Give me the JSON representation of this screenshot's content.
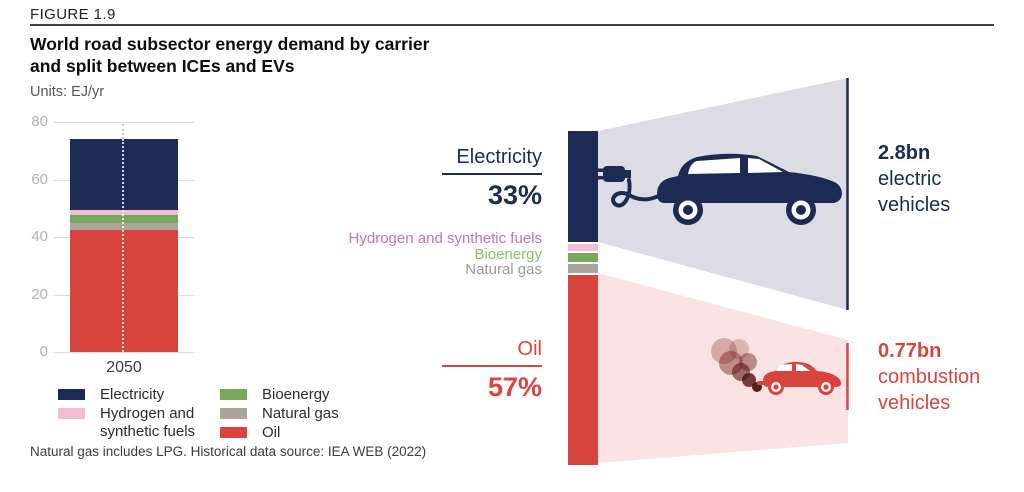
{
  "figure": {
    "label": "FIGURE 1.9",
    "title_line1": "World road subsector energy demand by carrier",
    "title_line2": "and split between ICEs and EVs",
    "units_line": "Units: EJ/yr",
    "footnote": "Natural gas includes LPG. Historical data source: IEA WEB (2022)"
  },
  "chart_data": {
    "type": "bar",
    "stacked": true,
    "title": "World road subsector energy demand by carrier and split between ICEs and EVs",
    "ylabel": "EJ/yr",
    "categories": [
      "2050"
    ],
    "series": [
      {
        "name": "Oil",
        "values": [
          42.5
        ],
        "color_key": "oil"
      },
      {
        "name": "Natural gas",
        "values": [
          2.5
        ],
        "color_key": "natural_gas"
      },
      {
        "name": "Bioenergy",
        "values": [
          2.5
        ],
        "color_key": "bioenergy"
      },
      {
        "name": "Hydrogen and synthetic fuels",
        "values": [
          2.0
        ],
        "color_key": "hydrogen"
      },
      {
        "name": "Electricity",
        "values": [
          24.5
        ],
        "color_key": "electricity"
      }
    ],
    "total": 74,
    "ylim": [
      0,
      80
    ],
    "yticks": [
      0,
      20,
      40,
      60,
      80
    ],
    "grid": true,
    "legend_position": "bottom"
  },
  "legend": {
    "columns": [
      [
        {
          "label": "Electricity",
          "color_key": "electricity"
        },
        {
          "label": "Hydrogen and synthetic fuels",
          "color_key": "hydrogen"
        }
      ],
      [
        {
          "label": "Bioenergy",
          "color_key": "bioenergy"
        },
        {
          "label": "Natural gas",
          "color_key": "natural_gas"
        },
        {
          "label": "Oil",
          "color_key": "oil"
        }
      ]
    ]
  },
  "split_view": {
    "electricity_label": "Electricity",
    "electricity_pct": "33%",
    "mid_labels": [
      {
        "text": "Hydrogen and synthetic fuels",
        "color_key": "hydrogen_text"
      },
      {
        "text": "Bioenergy",
        "color_key": "bioenergy_text"
      },
      {
        "text": "Natural gas",
        "color_key": "natural_gas_text"
      }
    ],
    "oil_label": "Oil",
    "oil_pct": "57%",
    "ev_count": "2.8bn",
    "ev_desc_line1": "electric",
    "ev_desc_line2": "vehicles",
    "ice_count": "0.77bn",
    "ice_desc_line1": "combustion",
    "ice_desc_line2": "vehicles"
  },
  "colors": {
    "navy": "#1c2a54",
    "red": "#d8453f",
    "electricity": "#1c2a54",
    "hydrogen": "#f2bcd4",
    "bioenergy": "#79a75b",
    "natural_gas": "#aba69b",
    "oil": "#d8453f",
    "beam_gray": "#dbdce4",
    "beam_pink": "#fae3e2",
    "hydrogen_text": "#cf6fa9",
    "bioenergy_text": "#8abf60",
    "natural_gas_text": "#9a9a9a"
  }
}
